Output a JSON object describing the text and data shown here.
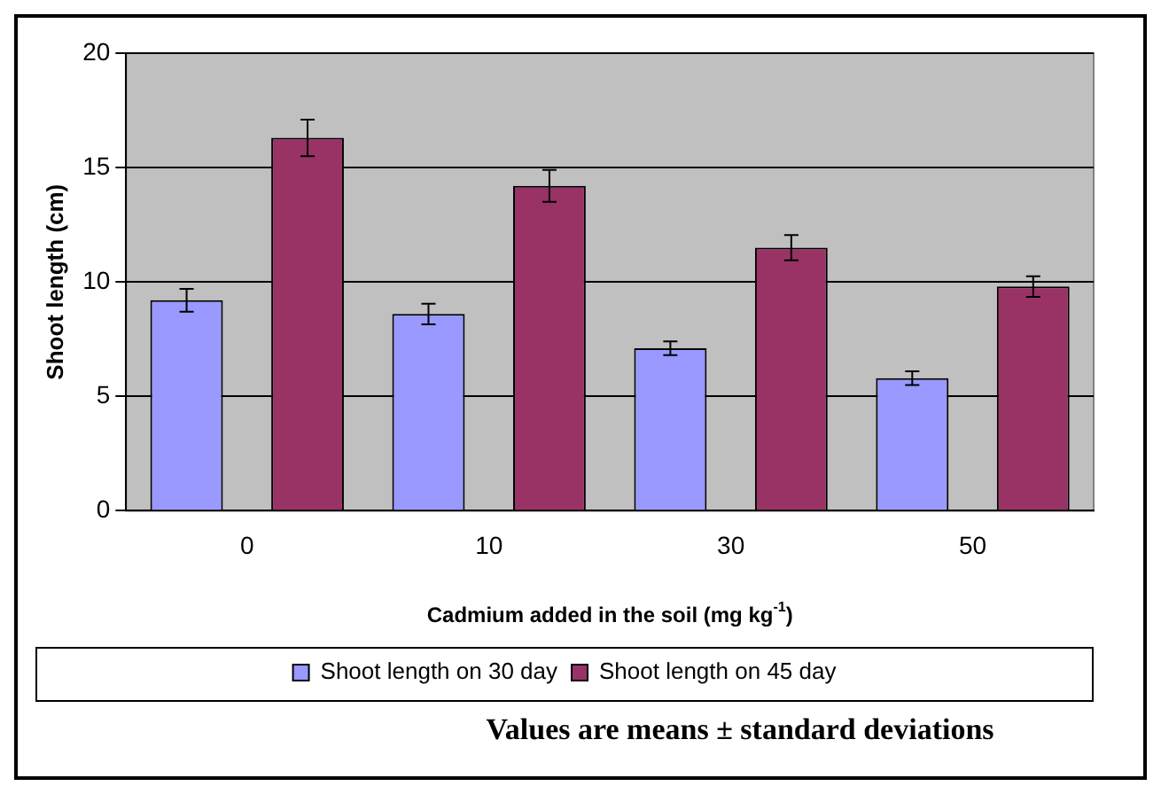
{
  "chart_data": {
    "type": "bar",
    "categories": [
      "0",
      "10",
      "30",
      "50"
    ],
    "xlabel": "Cadmium added in the soil (mg kg$^{-1}$)",
    "ylabel": "Shoot length (cm)",
    "series": [
      {
        "name": "Shoot length on 30 day",
        "color": "#9999ff",
        "values": [
          9.2,
          8.6,
          7.1,
          5.8
        ],
        "errors": [
          0.5,
          0.45,
          0.3,
          0.3
        ]
      },
      {
        "name": "Shoot length on 45 day",
        "color": "#993366",
        "values": [
          16.3,
          14.2,
          11.5,
          9.8
        ],
        "errors": [
          0.8,
          0.7,
          0.55,
          0.45
        ]
      }
    ],
    "ylim": [
      0,
      20
    ],
    "yticks": [
      0,
      5,
      10,
      15,
      20
    ],
    "grid": "y",
    "legend": "bottom",
    "annotations": [
      "Values are means ± standard deviations"
    ]
  }
}
